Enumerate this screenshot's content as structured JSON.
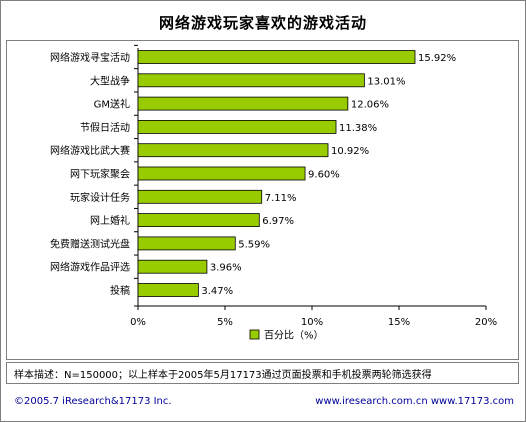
{
  "chart_data": {
    "type": "bar",
    "orientation": "horizontal",
    "title": "网络游戏玩家喜欢的游戏活动",
    "categories": [
      "网络游戏寻宝活动",
      "大型战争",
      "GM送礼",
      "节假日活动",
      "网络游戏比武大赛",
      "网下玩家聚会",
      "玩家设计任务",
      "网上婚礼",
      "免费赠送测试光盘",
      "网络游戏作品评选",
      "投稿"
    ],
    "values": [
      15.92,
      13.01,
      12.06,
      11.38,
      10.92,
      9.6,
      7.11,
      6.97,
      5.59,
      3.96,
      3.47
    ],
    "value_labels": [
      "15.92%",
      "13.01%",
      "12.06%",
      "11.38%",
      "10.92%",
      "9.60%",
      "7.11%",
      "6.97%",
      "5.59%",
      "3.96%",
      "3.47%"
    ],
    "series": [
      {
        "name": "百分比（%）",
        "color": "#99cc00"
      }
    ],
    "xlim": [
      0,
      20
    ],
    "xticks": [
      "0%",
      "5%",
      "10%",
      "15%",
      "20%"
    ],
    "grid": false,
    "legend": "bottom-center"
  },
  "note": "样本描述：N=150000；以上样本于2005年5月17173通过页面投票和手机投票两轮筛选获得",
  "footer": {
    "copyright": "©2005.7 iResearch&17173 Inc.",
    "sites": "www.iresearch.com.cn  www.17173.com"
  }
}
